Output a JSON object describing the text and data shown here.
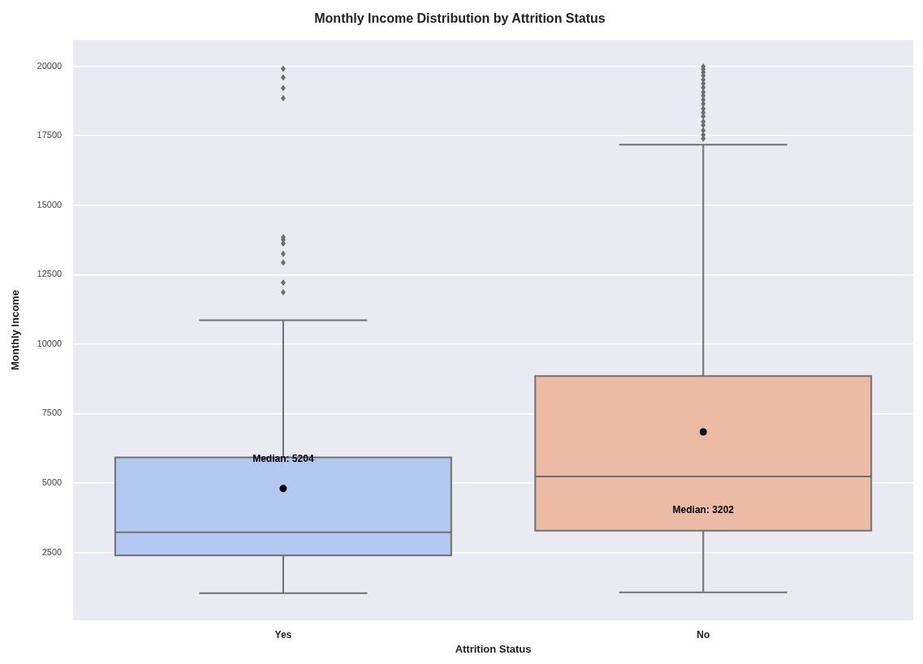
{
  "chart_data": {
    "type": "box",
    "title": "Monthly Income Distribution by Attrition Status",
    "xlabel": "Attrition Status",
    "ylabel": "Monthly Income",
    "categories": [
      "Yes",
      "No"
    ],
    "colors": [
      "#b2c8f1",
      "#ecbba6"
    ],
    "boxes": [
      {
        "low": 1030,
        "q1": 2390,
        "median": 3220,
        "q3": 5920,
        "high": 10860,
        "mean": 4800,
        "outliers": [
          11870,
          12210,
          12930,
          13250,
          13620,
          13760,
          13850,
          18850,
          19220,
          19600,
          19910
        ]
      },
      {
        "low": 1060,
        "q1": 3280,
        "median": 5230,
        "q3": 8850,
        "high": 17180,
        "mean": 6840,
        "outliers": [
          17400,
          17530,
          17690,
          17880,
          18010,
          18200,
          18330,
          18470,
          18650,
          18790,
          18940,
          19070,
          19230,
          19380,
          19520,
          19660,
          19790,
          19900,
          19990
        ]
      }
    ],
    "ylim": [
      60,
      20950
    ],
    "yticks": [
      2500,
      5000,
      7500,
      10000,
      12500,
      15000,
      17500,
      20000
    ],
    "grid": "y",
    "annotations": [
      "Median: 5204",
      "Median: 3202"
    ]
  }
}
